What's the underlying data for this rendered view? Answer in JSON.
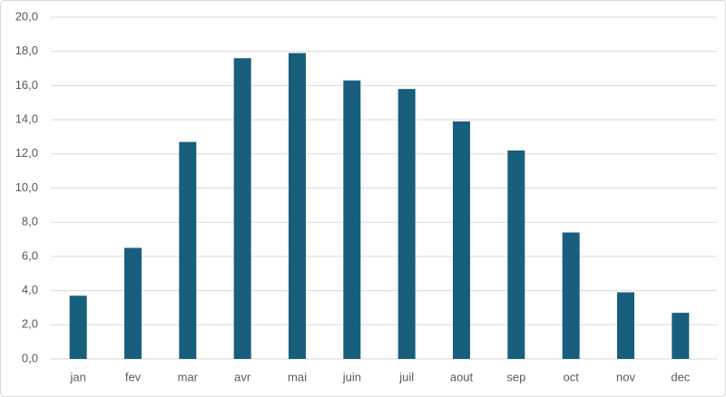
{
  "chart_data": {
    "type": "bar",
    "categories": [
      "jan",
      "fev",
      "mar",
      "avr",
      "mai",
      "juin",
      "juil",
      "aout",
      "sep",
      "oct",
      "nov",
      "dec"
    ],
    "values": [
      3.7,
      6.5,
      12.7,
      17.6,
      17.9,
      16.3,
      15.8,
      13.9,
      12.2,
      7.4,
      3.9,
      2.7
    ],
    "color": "#185f7e",
    "ylim": [
      0,
      20
    ],
    "yticks": [
      {
        "value": 0,
        "label": "0,0"
      },
      {
        "value": 2,
        "label": "2,0"
      },
      {
        "value": 4,
        "label": "4,0"
      },
      {
        "value": 6,
        "label": "6,0"
      },
      {
        "value": 8,
        "label": "8,0"
      },
      {
        "value": 10,
        "label": "10,0"
      },
      {
        "value": 12,
        "label": "12,0"
      },
      {
        "value": 14,
        "label": "14,0"
      },
      {
        "value": 16,
        "label": "16,0"
      },
      {
        "value": 18,
        "label": "18,0"
      },
      {
        "value": 20,
        "label": "20,0"
      }
    ],
    "grid": true
  }
}
